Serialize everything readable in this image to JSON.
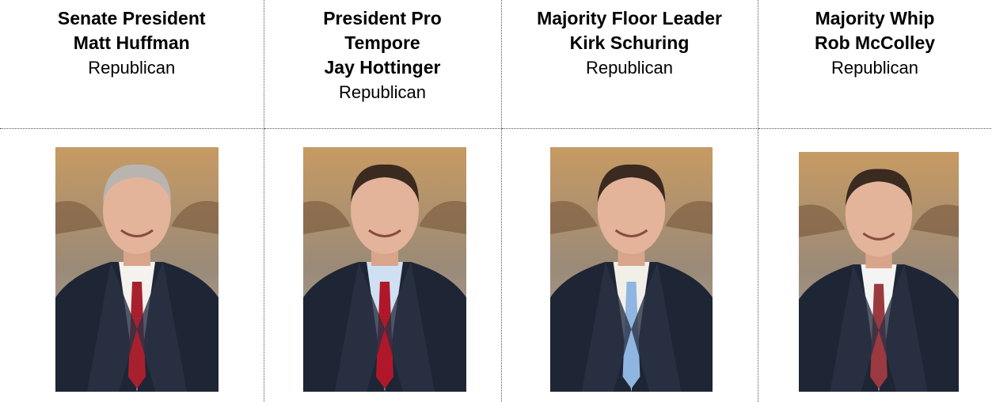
{
  "table": {
    "columns": [
      {
        "title": "Senate President",
        "name": "Matt Huffman",
        "party": "Republican"
      },
      {
        "title": "President Pro Tempore",
        "name": "Jay Hottinger",
        "party": "Republican"
      },
      {
        "title": "Majority Floor Leader",
        "name": "Kirk Schuring",
        "party": "Republican"
      },
      {
        "title": "Majority Whip",
        "name": "Rob McColley",
        "party": "Republican"
      }
    ]
  }
}
